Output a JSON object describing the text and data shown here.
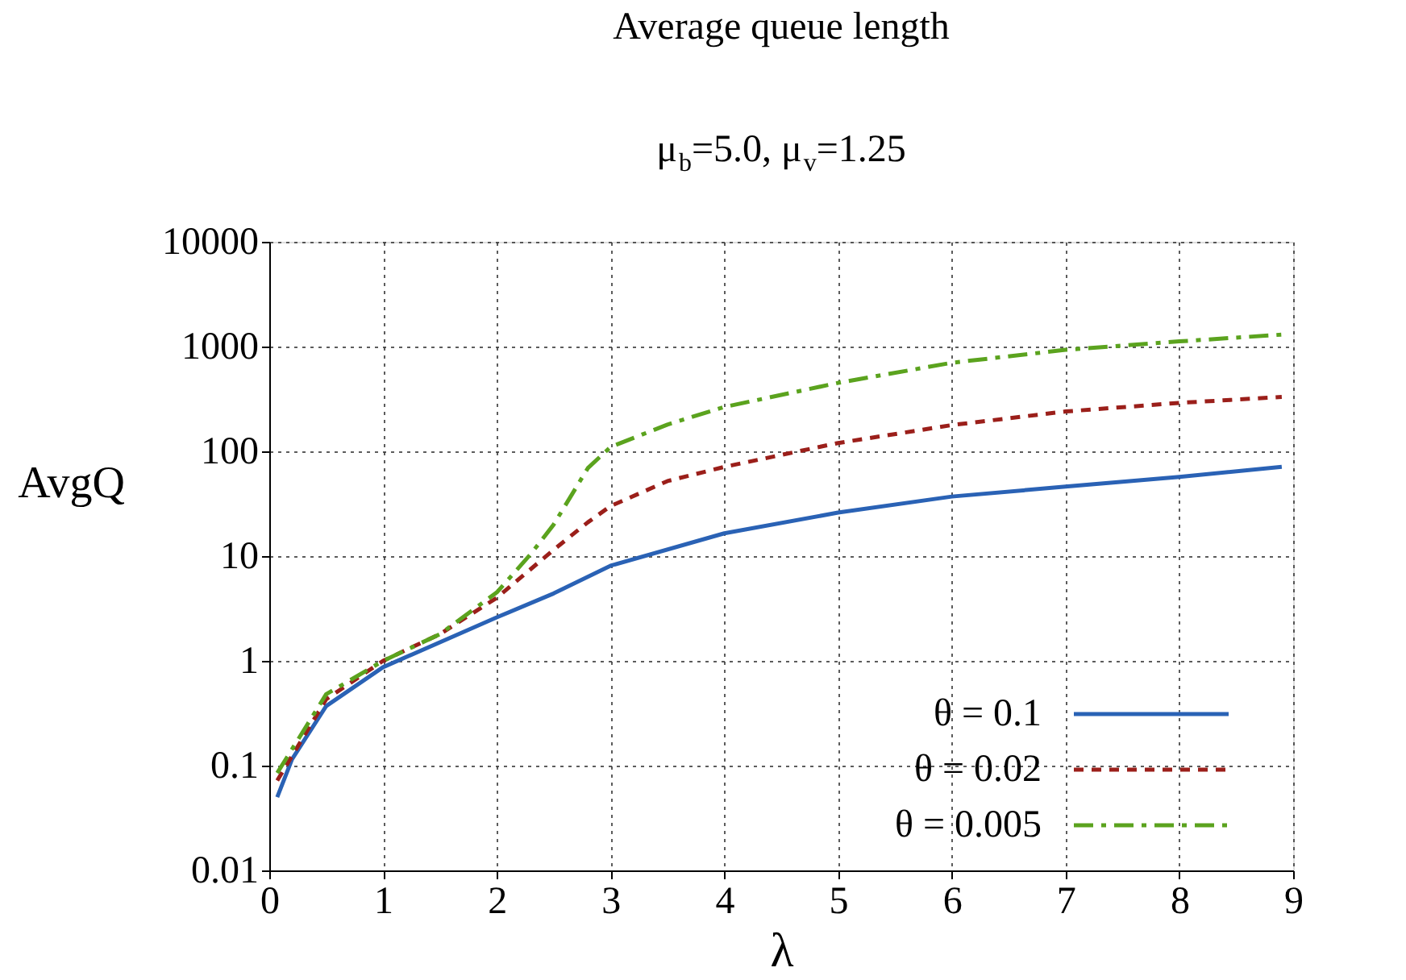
{
  "chart_data": {
    "type": "line",
    "title": "Average queue length",
    "subtitle": "μ$_{b}$=5.0, μ$_{v}$=1.25",
    "xlabel": "λ",
    "ylabel": "AvgQ",
    "log": "y",
    "xlim": [
      0,
      9
    ],
    "xticks": [
      0,
      1,
      2,
      3,
      4,
      5,
      6,
      7,
      8,
      9
    ],
    "ylim": [
      0.01,
      10000
    ],
    "yticks": [
      0.01,
      0.1,
      1,
      10,
      100,
      1000,
      10000
    ],
    "grid": true,
    "legend": "bottom right",
    "series": [
      {
        "name": "θ = 0.1",
        "color": "#2a62b5",
        "line_style": "solid",
        "x": [
          0.07,
          0.2,
          0.5,
          1,
          2,
          2.5,
          3,
          4,
          5,
          6,
          7,
          8,
          8.9
        ],
        "values": [
          0.05,
          0.115,
          0.37,
          0.87,
          2.6,
          4.4,
          8.1,
          16.5,
          26,
          37,
          46,
          57,
          71
        ]
      },
      {
        "name": "θ = 0.02",
        "color": "#9b1f1a",
        "line_style": "dashed",
        "x": [
          0.07,
          0.5,
          1,
          1.5,
          2,
          2.5,
          2.8,
          3,
          3.5,
          4,
          5,
          6,
          7,
          8,
          8.9
        ],
        "values": [
          0.072,
          0.43,
          1.0,
          1.8,
          4.0,
          11.5,
          21,
          30,
          52,
          71,
          120,
          178,
          240,
          290,
          330
        ]
      },
      {
        "name": "θ = 0.005",
        "color": "#5ba31e",
        "line_style": "dashdot",
        "x": [
          0.07,
          0.5,
          1,
          1.5,
          2,
          2.3,
          2.5,
          2.8,
          3,
          3.5,
          4,
          5,
          6,
          7,
          8,
          8.9
        ],
        "values": [
          0.085,
          0.48,
          1.0,
          1.8,
          4.5,
          10.5,
          20,
          69,
          110,
          180,
          265,
          450,
          700,
          930,
          1120,
          1300
        ]
      }
    ]
  }
}
